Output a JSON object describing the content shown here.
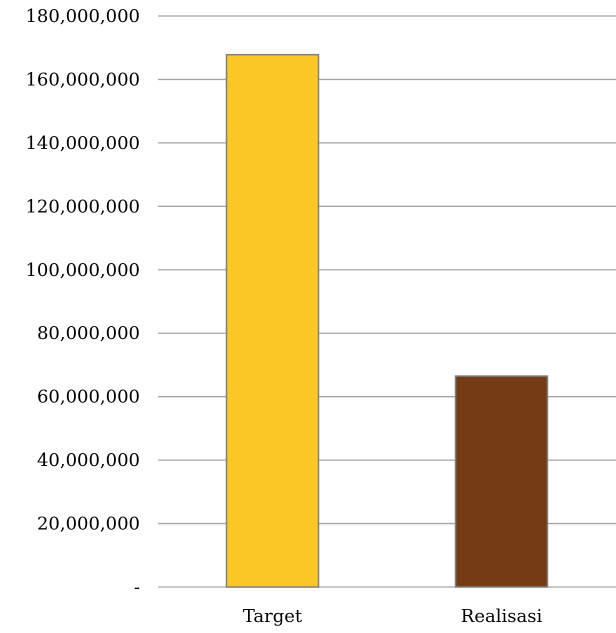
{
  "chart_data": {
    "type": "bar",
    "title": "",
    "xlabel": "",
    "ylabel": "",
    "categories": [
      "Target",
      "Realisasi"
    ],
    "values": [
      167800000,
      66500000
    ],
    "colors": [
      "#f9c825",
      "#733c15"
    ],
    "ylim": [
      0,
      180000000
    ],
    "yticks": [
      0,
      20000000,
      40000000,
      60000000,
      80000000,
      100000000,
      120000000,
      140000000,
      160000000,
      180000000
    ],
    "ytick_labels": [
      "-",
      "20,000,000",
      "40,000,000",
      "60,000,000",
      "80,000,000",
      "100,000,000",
      "120,000,000",
      "140,000,000",
      "160,000,000",
      "180,000,000"
    ],
    "grid": true,
    "legend": "none"
  }
}
